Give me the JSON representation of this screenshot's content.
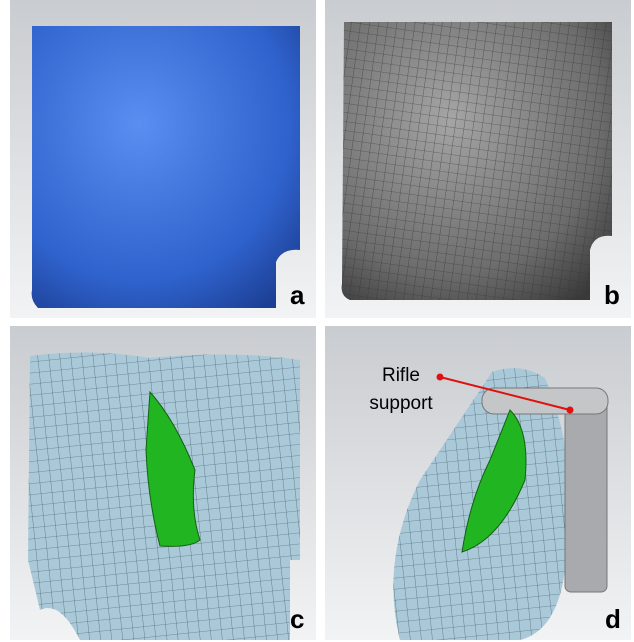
{
  "panels": [
    {
      "label": "a"
    },
    {
      "label": "b"
    },
    {
      "label": "c"
    },
    {
      "label": "d"
    }
  ],
  "annotation": {
    "lines": [
      "Rifle",
      "support"
    ]
  }
}
